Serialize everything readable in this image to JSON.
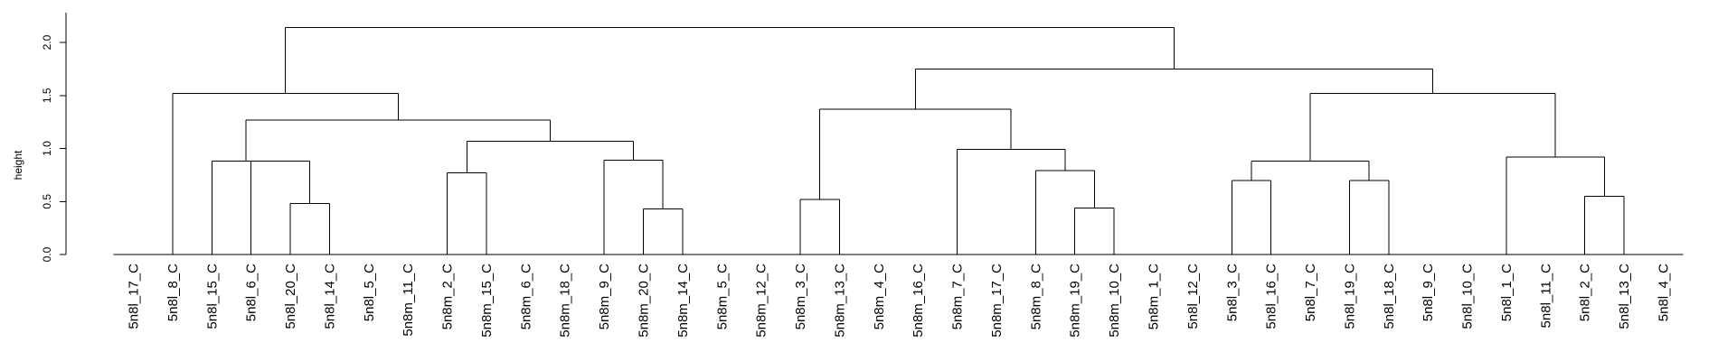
{
  "chart_data": {
    "type": "dendrogram",
    "ylabel": "height",
    "ylim": [
      0,
      2.2
    ],
    "yticks": [
      0.0,
      0.5,
      1.0,
      1.5,
      2.0
    ],
    "ytick_labels": [
      "0.0",
      "0.5",
      "1.0",
      "1.5",
      "2.0"
    ],
    "grid": false,
    "leaves": [
      "5n8l_17_C",
      "5n8l_8_C",
      "5n8l_15_C",
      "5n8l_6_C",
      "5n8l_20_C",
      "5n8l_14_C",
      "5n8l_5_C",
      "5n8m_11_C",
      "5n8m_2_C",
      "5n8m_15_C",
      "5n8m_6_C",
      "5n8m_18_C",
      "5n8m_9_C",
      "5n8m_20_C",
      "5n8m_14_C",
      "5n8m_5_C",
      "5n8m_12_C",
      "5n8m_3_C",
      "5n8m_13_C",
      "5n8m_4_C",
      "5n8m_16_C",
      "5n8m_7_C",
      "5n8m_17_C",
      "5n8m_8_C",
      "5n8m_19_C",
      "5n8m_10_C",
      "5n8m_1_C",
      "5n8l_12_C",
      "5n8l_3_C",
      "5n8l_16_C",
      "5n8l_7_C",
      "5n8l_19_C",
      "5n8l_18_C",
      "5n8l_9_C",
      "5n8l_10_C",
      "5n8l_1_C",
      "5n8l_11_C",
      "5n8l_2_C",
      "5n8l_13_C",
      "5n8l_4_C"
    ],
    "merges": [
      {
        "id": "A",
        "children": [
          "5n8l_20_C",
          "5n8l_14_C"
        ],
        "height": 0.48
      },
      {
        "id": "B",
        "children": [
          "5n8l_6_C",
          "A"
        ],
        "height": 0.88
      },
      {
        "id": "C",
        "children": [
          "5n8l_15_C",
          "B"
        ],
        "height": 0.88
      },
      {
        "id": "D",
        "children": [
          "5n8m_2_C",
          "5n8m_15_C"
        ],
        "height": 0.77
      },
      {
        "id": "E",
        "children": [
          "5n8m_20_C",
          "5n8m_14_C"
        ],
        "height": 0.43
      },
      {
        "id": "F",
        "children": [
          "5n8m_9_C",
          "E"
        ],
        "height": 0.89
      },
      {
        "id": "G",
        "children": [
          "D",
          "F"
        ],
        "height": 1.07
      },
      {
        "id": "H",
        "children": [
          "C",
          "G"
        ],
        "height": 1.27
      },
      {
        "id": "I",
        "children": [
          "5n8l_8_C",
          "H"
        ],
        "height": 1.52
      },
      {
        "id": "J",
        "children": [
          "5n8m_3_C",
          "5n8m_13_C"
        ],
        "height": 0.52
      },
      {
        "id": "K",
        "children": [
          "5n8m_19_C",
          "5n8m_10_C"
        ],
        "height": 0.44
      },
      {
        "id": "L",
        "children": [
          "5n8m_8_C",
          "K"
        ],
        "height": 0.79
      },
      {
        "id": "M",
        "children": [
          "5n8m_7_C",
          "L"
        ],
        "height": 0.99
      },
      {
        "id": "N",
        "children": [
          "J",
          "M"
        ],
        "height": 1.37
      },
      {
        "id": "O",
        "children": [
          "5n8l_3_C",
          "5n8l_16_C"
        ],
        "height": 0.7
      },
      {
        "id": "P",
        "children": [
          "5n8l_19_C",
          "5n8l_18_C"
        ],
        "height": 0.7
      },
      {
        "id": "Q",
        "children": [
          "O",
          "P"
        ],
        "height": 0.88
      },
      {
        "id": "R",
        "children": [
          "5n8l_2_C",
          "5n8l_13_C"
        ],
        "height": 0.55
      },
      {
        "id": "S",
        "children": [
          "5n8l_1_C",
          "R"
        ],
        "height": 0.92
      },
      {
        "id": "T",
        "children": [
          "Q",
          "S"
        ],
        "height": 1.52
      },
      {
        "id": "U",
        "children": [
          "N",
          "T"
        ],
        "height": 1.75
      },
      {
        "id": "V",
        "children": [
          "I",
          "U"
        ],
        "height": 2.14
      }
    ]
  }
}
